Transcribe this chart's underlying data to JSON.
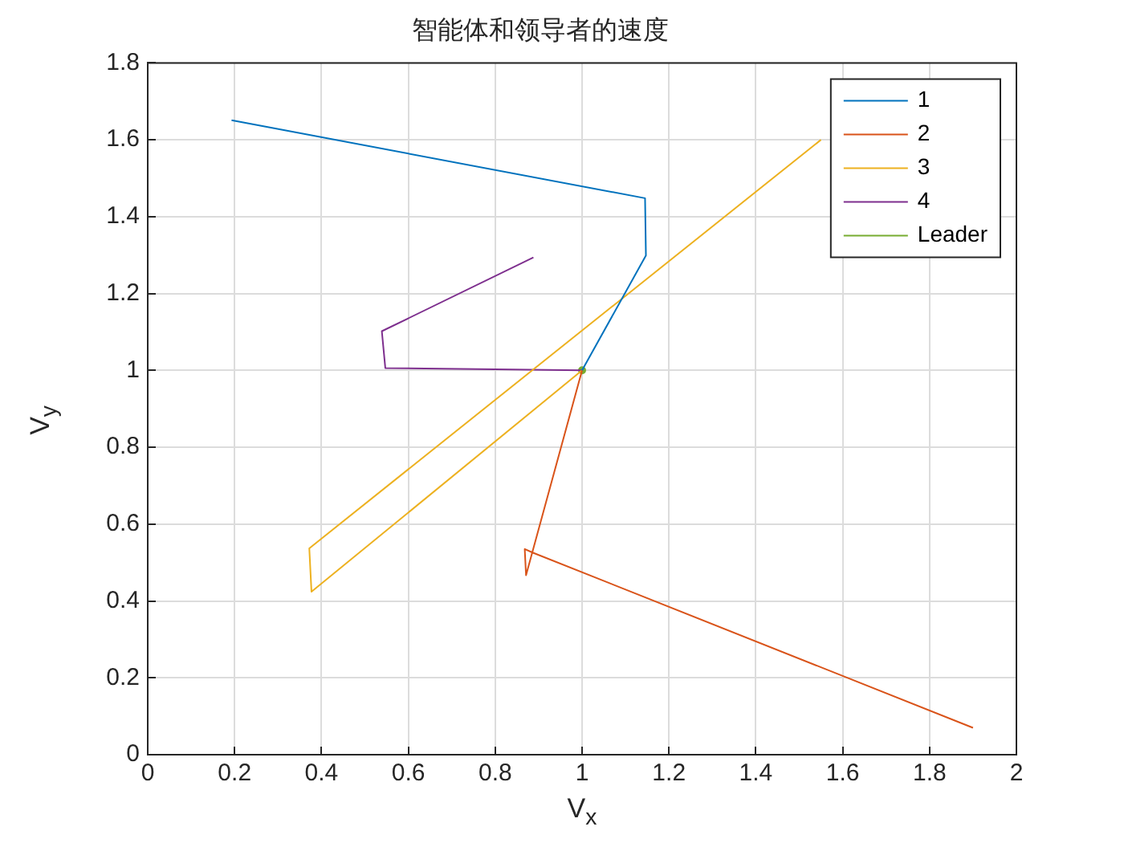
{
  "chart_data": {
    "type": "line",
    "title": "智能体和领导者的速度",
    "xlabel": "V$_{x}$",
    "ylabel": "V$_{y}$",
    "xlim": [
      0,
      2
    ],
    "xticks": [
      0,
      0.2,
      0.4,
      0.6,
      0.8,
      1,
      1.2,
      1.4,
      1.6,
      1.8,
      2
    ],
    "ylim": [
      0,
      1.8
    ],
    "yticks": [
      0,
      0.2,
      0.4,
      0.6,
      0.8,
      1,
      1.2,
      1.4,
      1.6,
      1.8
    ],
    "grid": true,
    "legend": "top right",
    "marker": "none",
    "line_style": "solid",
    "series": [
      {
        "name": "1",
        "color": "#0072bd",
        "x": [
          0.193,
          1.145,
          1.147,
          1.0
        ],
        "values": [
          1.651,
          1.448,
          1.299,
          1.0
        ]
      },
      {
        "name": "2",
        "color": "#d95319",
        "x": [
          1.9,
          0.886,
          0.868,
          0.871,
          1.0
        ],
        "values": [
          0.07,
          0.526,
          0.535,
          0.467,
          1.0
        ]
      },
      {
        "name": "3",
        "color": "#edb120",
        "x": [
          1.55,
          0.372,
          0.377,
          1.0
        ],
        "values": [
          1.6,
          0.537,
          0.424,
          1.0
        ]
      },
      {
        "name": "4",
        "color": "#7e2f8e",
        "x": [
          0.888,
          0.539,
          0.547,
          1.0
        ],
        "values": [
          1.294,
          1.102,
          1.006,
          1.0
        ]
      },
      {
        "name": "Leader",
        "color": "#77ac30",
        "marker": "circle",
        "x": [
          1.0
        ],
        "values": [
          1.0
        ]
      }
    ]
  }
}
